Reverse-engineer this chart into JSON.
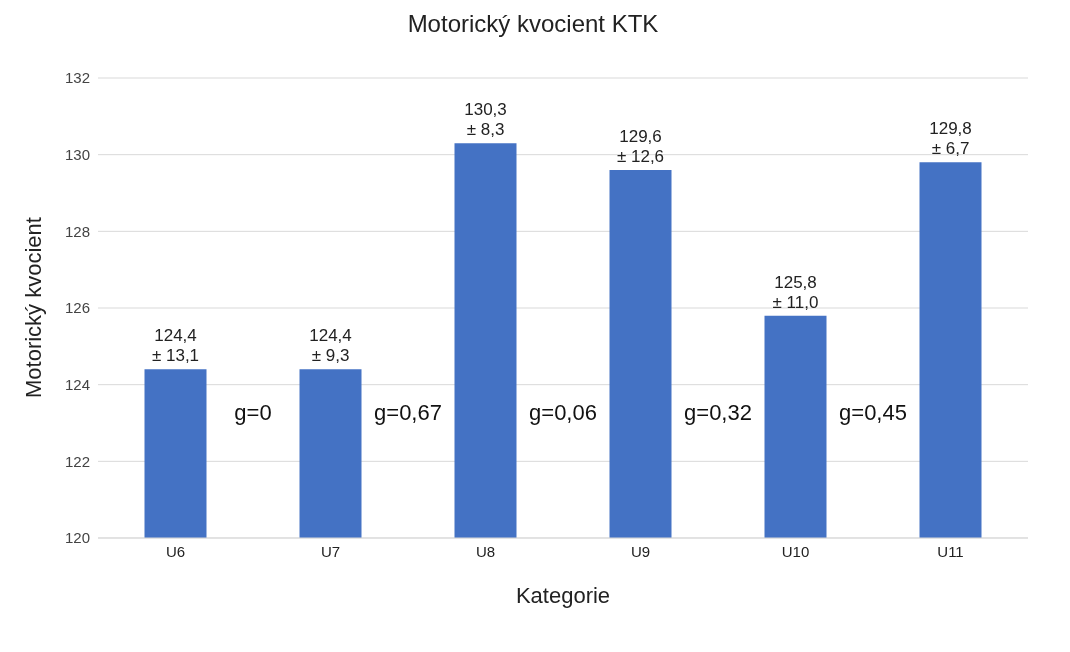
{
  "chart_data": {
    "type": "bar",
    "title": "Motorický kvocient KTK",
    "xlabel": "Kategorie",
    "ylabel": "Motorický kvocient",
    "categories": [
      "U6",
      "U7",
      "U8",
      "U9",
      "U10",
      "U11"
    ],
    "values": [
      124.4,
      124.4,
      130.3,
      129.6,
      125.8,
      129.8
    ],
    "value_labels": [
      "124,4\n± 13,1",
      "124,4\n± 9,3",
      "130,3\n± 8,3",
      "129,6\n± 12,6",
      "125,8\n± 11,0",
      "129,8\n± 6,7"
    ],
    "color": "#4472c4",
    "ylim": [
      120,
      132
    ],
    "yticks": [
      120,
      122,
      124,
      126,
      128,
      130,
      132
    ],
    "grid": "y",
    "annotations": [
      "g=0",
      "g=0,67",
      "g=0,06",
      "g=0,32",
      "g=0,45"
    ]
  }
}
